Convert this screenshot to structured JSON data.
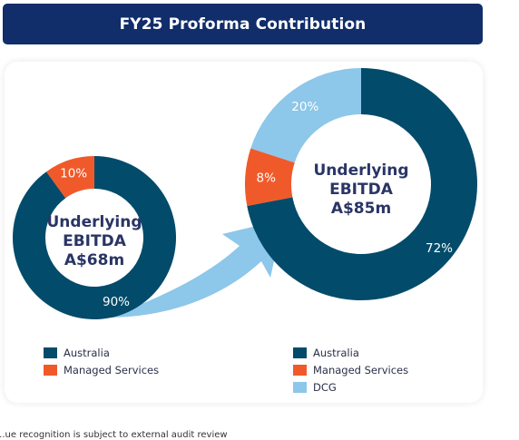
{
  "title": "FY25 Proforma Contribution",
  "colors": {
    "header_bg": "#112d6a",
    "australia": "#034b6a",
    "managed_services": "#f05a2a",
    "dcg": "#8dc7ea",
    "label_text": "#2a3565",
    "arrow": "#8dc7ea"
  },
  "chart_data": [
    {
      "type": "pie",
      "variant": "donut",
      "center_text": [
        "Underlying",
        "EBITDA",
        "A$68m"
      ],
      "categories": [
        "Australia",
        "Managed Services"
      ],
      "values": [
        90,
        10
      ],
      "value_labels": [
        "90%",
        "10%"
      ],
      "legend": [
        "Australia",
        "Managed Services"
      ],
      "legend_placement": "bottom-left"
    },
    {
      "type": "pie",
      "variant": "donut",
      "center_text": [
        "Underlying",
        "EBITDA",
        "A$85m"
      ],
      "categories": [
        "Australia",
        "Managed Services",
        "DCG"
      ],
      "values": [
        72,
        8,
        20
      ],
      "value_labels": [
        "72%",
        "8%",
        "20%"
      ],
      "legend": [
        "Australia",
        "Managed Services",
        "DCG"
      ],
      "legend_placement": "bottom-right"
    }
  ],
  "footnote": "...ue recognition is subject to external audit review"
}
